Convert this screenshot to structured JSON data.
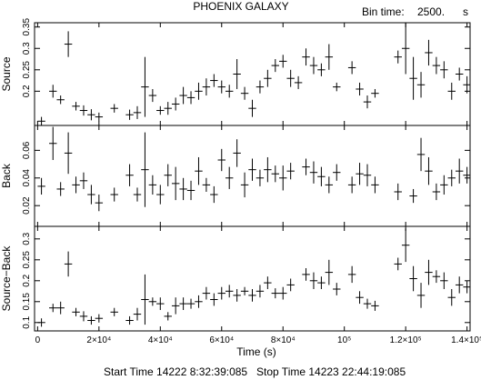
{
  "header": {
    "title": "PHOENIX GALAXY",
    "bin_label": "Bin time:",
    "bin_value": "2500.",
    "bin_unit": "s"
  },
  "footer": {
    "start": "Start Time 14222  8:32:39:085",
    "stop": "Stop Time 14223 22:44:19:085"
  },
  "chart_data": {
    "type": "scatter",
    "error_bars": true,
    "x_label": "Time (s)",
    "x_ticks": [
      {
        "v": 0,
        "label": "0"
      },
      {
        "v": 20000,
        "label": "2×10⁴"
      },
      {
        "v": 40000,
        "label": "4×10⁴"
      },
      {
        "v": 60000,
        "label": "6×10⁴"
      },
      {
        "v": 80000,
        "label": "8×10⁴"
      },
      {
        "v": 100000,
        "label": "10⁵"
      },
      {
        "v": 120000,
        "label": "1.2×10⁵"
      },
      {
        "v": 140000,
        "label": "1.4×10⁵"
      }
    ],
    "xlim": [
      -1000,
      141000
    ],
    "panels": [
      {
        "ylabel": "Source",
        "ylim": [
          0.12,
          0.36
        ],
        "ticks": [
          0.2,
          0.25,
          0.3,
          0.35
        ],
        "tick_labels": [
          "0.2",
          "0.25",
          "0.3",
          "0.35"
        ],
        "points": [
          [
            1250,
            0.13,
            0.01
          ],
          [
            5000,
            0.2,
            0.015
          ],
          [
            7500,
            0.18,
            0.01
          ],
          [
            10000,
            0.31,
            0.03
          ],
          [
            12500,
            0.165,
            0.01
          ],
          [
            15000,
            0.155,
            0.012
          ],
          [
            17500,
            0.145,
            0.013
          ],
          [
            20000,
            0.14,
            0.01
          ],
          [
            25000,
            0.16,
            0.01
          ],
          [
            30000,
            0.145,
            0.012
          ],
          [
            32500,
            0.15,
            0.015
          ],
          [
            35000,
            0.21,
            0.07
          ],
          [
            37500,
            0.19,
            0.015
          ],
          [
            40000,
            0.155,
            0.01
          ],
          [
            42500,
            0.16,
            0.015
          ],
          [
            45000,
            0.17,
            0.015
          ],
          [
            47500,
            0.19,
            0.02
          ],
          [
            50000,
            0.185,
            0.015
          ],
          [
            52500,
            0.2,
            0.02
          ],
          [
            55000,
            0.21,
            0.02
          ],
          [
            57500,
            0.225,
            0.015
          ],
          [
            60000,
            0.21,
            0.015
          ],
          [
            62500,
            0.2,
            0.015
          ],
          [
            65000,
            0.24,
            0.035
          ],
          [
            67500,
            0.195,
            0.015
          ],
          [
            70000,
            0.16,
            0.02
          ],
          [
            72500,
            0.21,
            0.015
          ],
          [
            75000,
            0.23,
            0.02
          ],
          [
            77500,
            0.26,
            0.015
          ],
          [
            80000,
            0.27,
            0.015
          ],
          [
            82500,
            0.23,
            0.02
          ],
          [
            85000,
            0.22,
            0.015
          ],
          [
            87500,
            0.28,
            0.02
          ],
          [
            90000,
            0.26,
            0.02
          ],
          [
            92500,
            0.25,
            0.015
          ],
          [
            95000,
            0.28,
            0.03
          ],
          [
            97500,
            0.21,
            0.01
          ],
          [
            102500,
            0.255,
            0.015
          ],
          [
            105000,
            0.205,
            0.015
          ],
          [
            107500,
            0.175,
            0.015
          ],
          [
            110000,
            0.195,
            0.01
          ],
          [
            117500,
            0.28,
            0.015
          ],
          [
            120000,
            0.3,
            0.06
          ],
          [
            122500,
            0.23,
            0.05
          ],
          [
            125000,
            0.215,
            0.03
          ],
          [
            127500,
            0.29,
            0.03
          ],
          [
            130000,
            0.26,
            0.02
          ],
          [
            132500,
            0.25,
            0.02
          ],
          [
            135000,
            0.2,
            0.02
          ],
          [
            137500,
            0.24,
            0.015
          ],
          [
            140000,
            0.215,
            0.02
          ]
        ]
      },
      {
        "ylabel": "Back",
        "ylim": [
          0.005,
          0.078
        ],
        "ticks": [
          0.02,
          0.04,
          0.06
        ],
        "tick_labels": [
          "0.02",
          "0.04",
          "0.06"
        ],
        "points": [
          [
            1250,
            0.034,
            0.006
          ],
          [
            5000,
            0.065,
            0.012
          ],
          [
            7500,
            0.032,
            0.005
          ],
          [
            10000,
            0.058,
            0.015
          ],
          [
            12500,
            0.035,
            0.006
          ],
          [
            15000,
            0.038,
            0.006
          ],
          [
            17500,
            0.028,
            0.007
          ],
          [
            20000,
            0.022,
            0.006
          ],
          [
            25000,
            0.028,
            0.005
          ],
          [
            30000,
            0.042,
            0.008
          ],
          [
            32500,
            0.028,
            0.005
          ],
          [
            35000,
            0.046,
            0.027
          ],
          [
            37500,
            0.035,
            0.007
          ],
          [
            40000,
            0.028,
            0.007
          ],
          [
            42500,
            0.042,
            0.008
          ],
          [
            45000,
            0.036,
            0.012
          ],
          [
            47500,
            0.032,
            0.008
          ],
          [
            50000,
            0.031,
            0.007
          ],
          [
            52500,
            0.045,
            0.01
          ],
          [
            55000,
            0.035,
            0.005
          ],
          [
            57500,
            0.028,
            0.006
          ],
          [
            60000,
            0.053,
            0.008
          ],
          [
            62500,
            0.04,
            0.008
          ],
          [
            65000,
            0.058,
            0.01
          ],
          [
            67500,
            0.035,
            0.009
          ],
          [
            70000,
            0.046,
            0.008
          ],
          [
            72500,
            0.04,
            0.006
          ],
          [
            75000,
            0.046,
            0.009
          ],
          [
            77500,
            0.043,
            0.006
          ],
          [
            80000,
            0.04,
            0.009
          ],
          [
            82500,
            0.045,
            0.006
          ],
          [
            87500,
            0.048,
            0.006
          ],
          [
            90000,
            0.044,
            0.008
          ],
          [
            92500,
            0.041,
            0.007
          ],
          [
            95000,
            0.035,
            0.006
          ],
          [
            97500,
            0.044,
            0.006
          ],
          [
            102500,
            0.035,
            0.006
          ],
          [
            105000,
            0.043,
            0.008
          ],
          [
            107500,
            0.042,
            0.008
          ],
          [
            110000,
            0.035,
            0.006
          ],
          [
            117500,
            0.03,
            0.006
          ],
          [
            122500,
            0.027,
            0.005
          ],
          [
            125000,
            0.057,
            0.012
          ],
          [
            127500,
            0.045,
            0.01
          ],
          [
            130000,
            0.03,
            0.006
          ],
          [
            132500,
            0.035,
            0.007
          ],
          [
            135000,
            0.04,
            0.006
          ],
          [
            137500,
            0.045,
            0.009
          ],
          [
            140000,
            0.042,
            0.006
          ]
        ]
      },
      {
        "ylabel": "Source−Back",
        "ylim": [
          0.08,
          0.33
        ],
        "ticks": [
          0.1,
          0.15,
          0.2,
          0.25,
          0.3
        ],
        "tick_labels": [
          "0.1",
          "0.15",
          "0.2",
          "0.25",
          "0.3"
        ],
        "points": [
          [
            1250,
            0.1,
            0.01
          ],
          [
            5000,
            0.135,
            0.01
          ],
          [
            7500,
            0.135,
            0.015
          ],
          [
            10000,
            0.24,
            0.03
          ],
          [
            12500,
            0.125,
            0.01
          ],
          [
            15000,
            0.115,
            0.012
          ],
          [
            17500,
            0.105,
            0.01
          ],
          [
            20000,
            0.11,
            0.01
          ],
          [
            25000,
            0.125,
            0.01
          ],
          [
            30000,
            0.105,
            0.01
          ],
          [
            32500,
            0.12,
            0.015
          ],
          [
            35000,
            0.155,
            0.06
          ],
          [
            37500,
            0.15,
            0.01
          ],
          [
            40000,
            0.145,
            0.015
          ],
          [
            42500,
            0.115,
            0.01
          ],
          [
            45000,
            0.14,
            0.02
          ],
          [
            47500,
            0.145,
            0.015
          ],
          [
            50000,
            0.145,
            0.012
          ],
          [
            52500,
            0.15,
            0.015
          ],
          [
            55000,
            0.17,
            0.015
          ],
          [
            57500,
            0.155,
            0.015
          ],
          [
            60000,
            0.17,
            0.015
          ],
          [
            62500,
            0.175,
            0.015
          ],
          [
            65000,
            0.165,
            0.015
          ],
          [
            67500,
            0.175,
            0.01
          ],
          [
            70000,
            0.165,
            0.015
          ],
          [
            72500,
            0.175,
            0.015
          ],
          [
            75000,
            0.195,
            0.015
          ],
          [
            77500,
            0.17,
            0.012
          ],
          [
            80000,
            0.17,
            0.015
          ],
          [
            82500,
            0.19,
            0.015
          ],
          [
            87500,
            0.215,
            0.015
          ],
          [
            90000,
            0.2,
            0.02
          ],
          [
            92500,
            0.195,
            0.015
          ],
          [
            95000,
            0.22,
            0.03
          ],
          [
            97500,
            0.18,
            0.015
          ],
          [
            102500,
            0.215,
            0.02
          ],
          [
            105000,
            0.16,
            0.015
          ],
          [
            107500,
            0.145,
            0.012
          ],
          [
            110000,
            0.14,
            0.012
          ],
          [
            117500,
            0.24,
            0.015
          ],
          [
            120000,
            0.285,
            0.04
          ],
          [
            122500,
            0.205,
            0.03
          ],
          [
            125000,
            0.165,
            0.03
          ],
          [
            127500,
            0.22,
            0.03
          ],
          [
            130000,
            0.21,
            0.015
          ],
          [
            132500,
            0.2,
            0.02
          ],
          [
            135000,
            0.16,
            0.02
          ],
          [
            137500,
            0.19,
            0.02
          ],
          [
            140000,
            0.185,
            0.015
          ]
        ]
      }
    ]
  }
}
